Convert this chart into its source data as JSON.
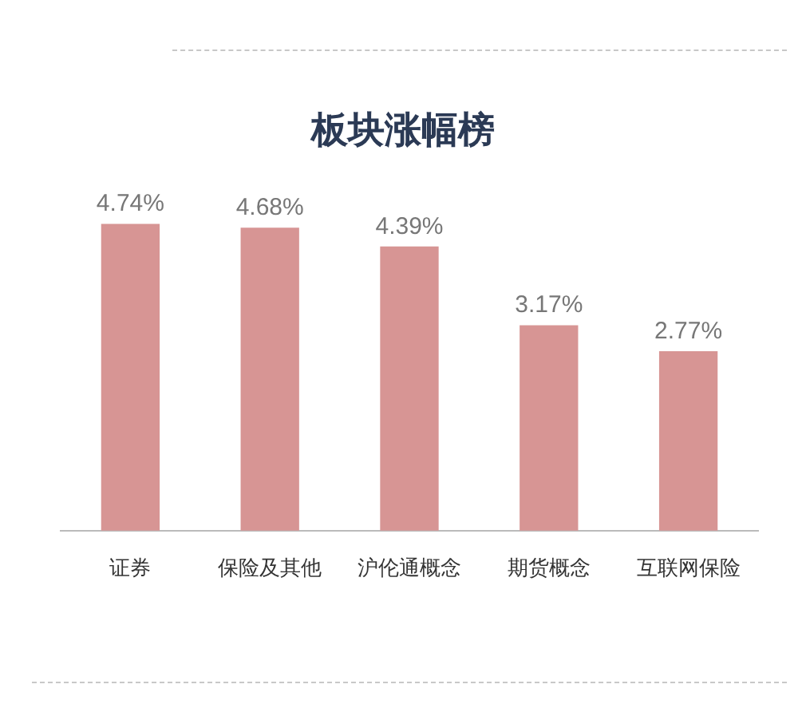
{
  "chart_data": {
    "type": "bar",
    "title": "板块涨幅榜",
    "categories": [
      "证券",
      "保险及其他",
      "沪伦通概念",
      "期货概念",
      "互联网保险"
    ],
    "values": [
      4.74,
      4.68,
      4.39,
      3.17,
      2.77
    ],
    "value_labels": [
      "4.74%",
      "4.68%",
      "4.39%",
      "3.17%",
      "2.77%"
    ],
    "color": "#d79594",
    "grid": false,
    "legend": false
  }
}
